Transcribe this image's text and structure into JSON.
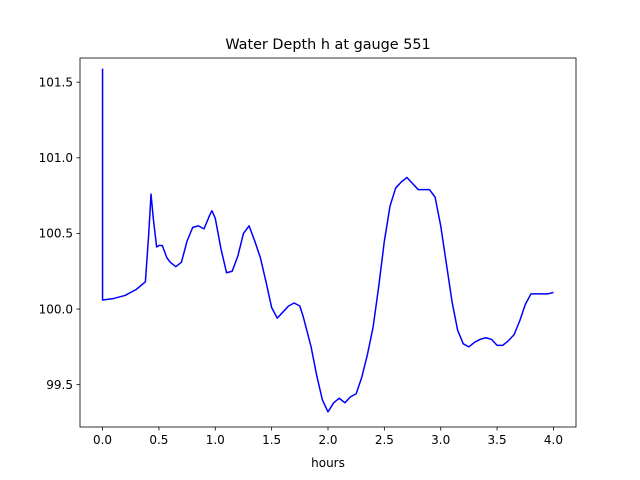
{
  "chart_data": {
    "type": "line",
    "title": "Water Depth h at gauge 551",
    "xlabel": "hours",
    "ylabel": "",
    "xlim": [
      -0.2,
      4.2
    ],
    "ylim": [
      99.22,
      101.66
    ],
    "grid": false,
    "x_ticks": [
      0.0,
      0.5,
      1.0,
      1.5,
      2.0,
      2.5,
      3.0,
      3.5,
      4.0
    ],
    "x_tick_labels": [
      "0.0",
      "0.5",
      "1.0",
      "1.5",
      "2.0",
      "2.5",
      "3.0",
      "3.5",
      "4.0"
    ],
    "y_ticks": [
      99.5,
      100.0,
      100.5,
      101.0,
      101.5
    ],
    "y_tick_labels": [
      "99.5",
      "100.0",
      "100.5",
      "101.0",
      "101.5"
    ],
    "series": [
      {
        "color": "#0000ff",
        "x": [
          0.0,
          0.0,
          0.1,
          0.2,
          0.3,
          0.38,
          0.41,
          0.43,
          0.45,
          0.48,
          0.5,
          0.53,
          0.57,
          0.6,
          0.65,
          0.7,
          0.75,
          0.8,
          0.85,
          0.9,
          0.95,
          0.97,
          1.0,
          1.05,
          1.1,
          1.15,
          1.2,
          1.25,
          1.3,
          1.35,
          1.4,
          1.45,
          1.5,
          1.55,
          1.6,
          1.65,
          1.7,
          1.75,
          1.78,
          1.85,
          1.9,
          1.95,
          2.0,
          2.05,
          2.1,
          2.15,
          2.2,
          2.25,
          2.3,
          2.35,
          2.4,
          2.45,
          2.5,
          2.55,
          2.6,
          2.65,
          2.7,
          2.75,
          2.8,
          2.85,
          2.9,
          2.95,
          3.0,
          3.05,
          3.1,
          3.15,
          3.2,
          3.25,
          3.3,
          3.35,
          3.4,
          3.45,
          3.5,
          3.55,
          3.6,
          3.65,
          3.7,
          3.75,
          3.8,
          3.85,
          3.9,
          3.95,
          4.0
        ],
        "y": [
          101.59,
          100.06,
          100.07,
          100.09,
          100.13,
          100.18,
          100.5,
          100.76,
          100.6,
          100.41,
          100.42,
          100.42,
          100.34,
          100.31,
          100.28,
          100.31,
          100.45,
          100.54,
          100.55,
          100.53,
          100.62,
          100.65,
          100.6,
          100.4,
          100.24,
          100.25,
          100.35,
          100.5,
          100.55,
          100.45,
          100.34,
          100.18,
          100.01,
          99.94,
          99.98,
          100.02,
          100.04,
          100.02,
          99.95,
          99.75,
          99.56,
          99.4,
          99.32,
          99.38,
          99.41,
          99.38,
          99.42,
          99.44,
          99.55,
          99.7,
          99.88,
          100.15,
          100.45,
          100.68,
          100.8,
          100.84,
          100.87,
          100.83,
          100.79,
          100.79,
          100.79,
          100.74,
          100.55,
          100.3,
          100.05,
          99.86,
          99.77,
          99.75,
          99.78,
          99.8,
          99.81,
          99.8,
          99.76,
          99.76,
          99.79,
          99.83,
          99.92,
          100.03,
          100.1,
          100.1,
          100.1,
          100.1,
          100.11
        ]
      }
    ]
  }
}
